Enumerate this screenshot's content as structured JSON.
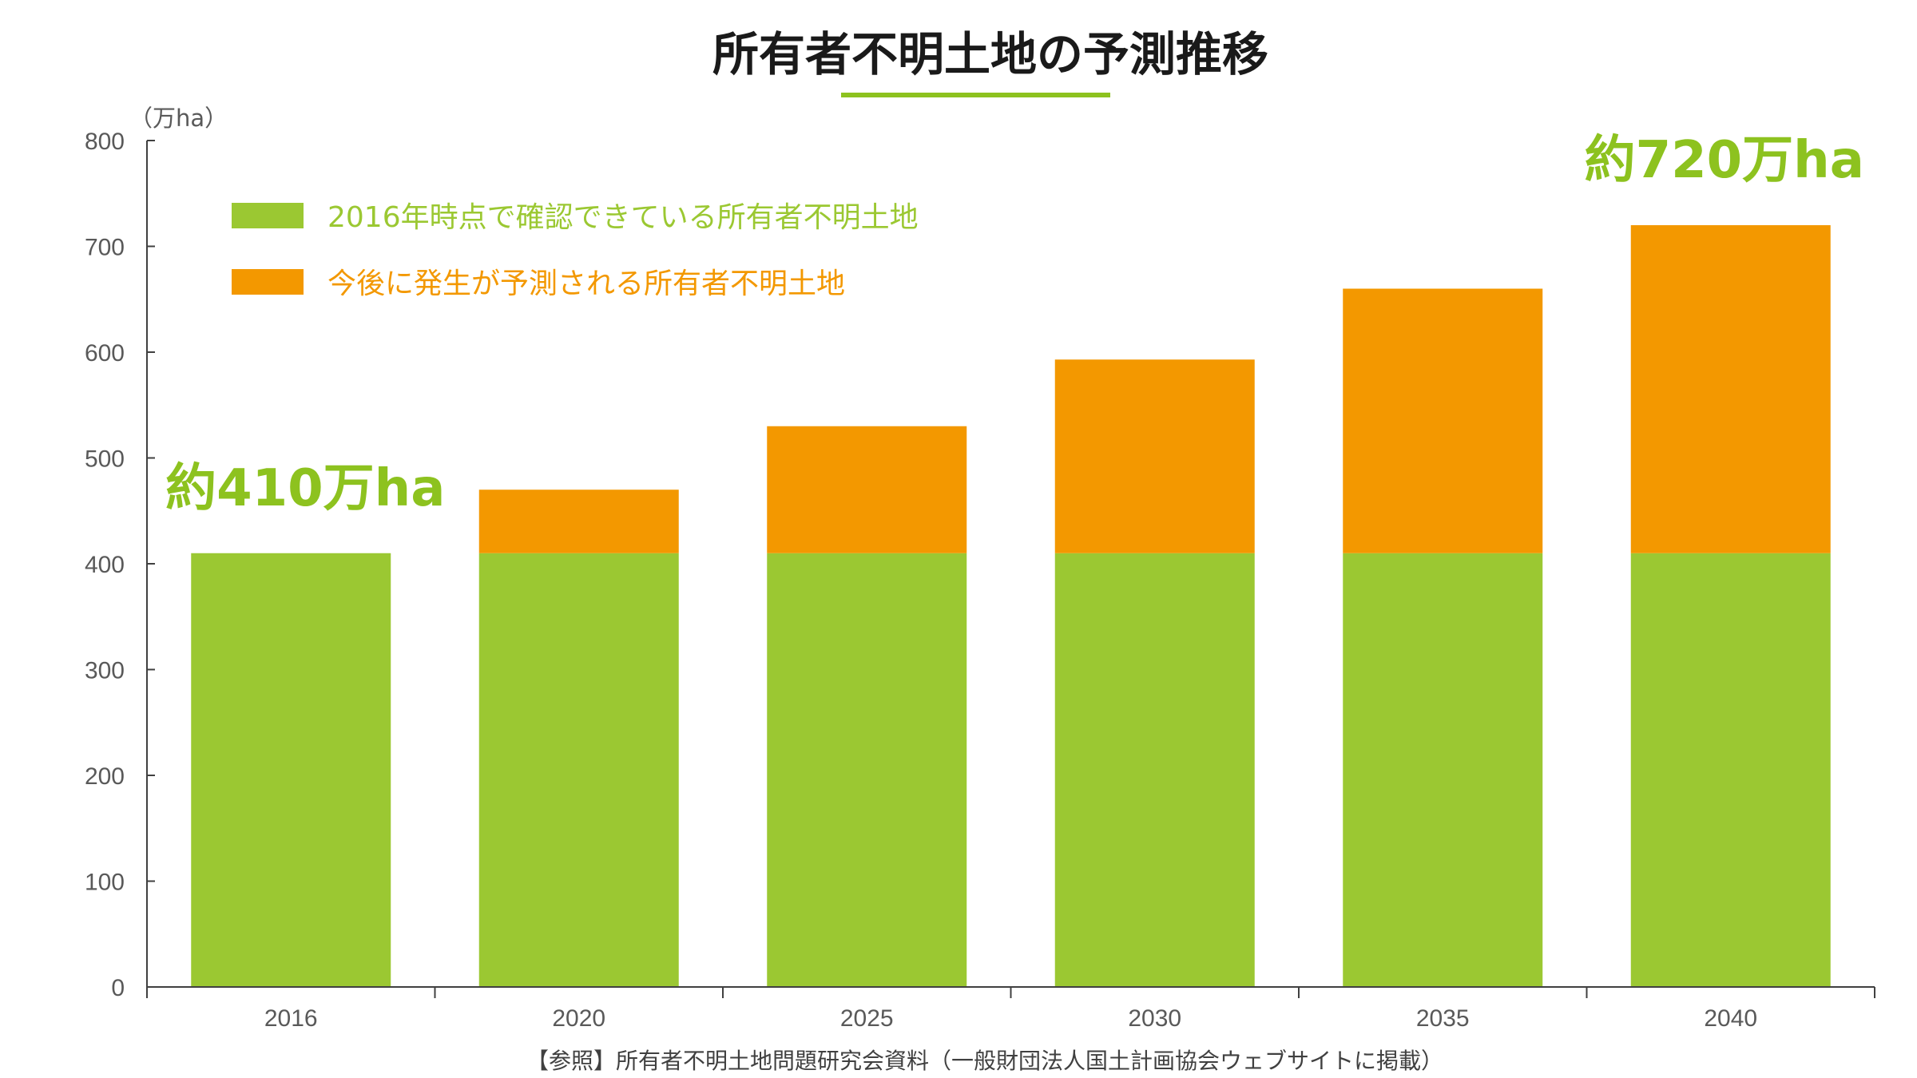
{
  "chart_data": {
    "type": "bar",
    "stacked": true,
    "title": "所有者不明土地の予測推移",
    "ylabel": "（万ha）",
    "ylim": [
      0,
      800
    ],
    "y_ticks": [
      0,
      100,
      200,
      300,
      400,
      500,
      600,
      700,
      800
    ],
    "categories": [
      "2016",
      "2020",
      "2025",
      "2030",
      "2035",
      "2040"
    ],
    "series": [
      {
        "name": "2016年時点で確認できている所有者不明土地",
        "color": "#9BC832",
        "values": [
          410,
          410,
          410,
          410,
          410,
          410
        ]
      },
      {
        "name": "今後に発生が予測される所有者不明土地",
        "color": "#F39800",
        "values": [
          0,
          60,
          120,
          183,
          250,
          310
        ]
      }
    ],
    "totals": [
      410,
      470,
      530,
      593,
      660,
      720
    ],
    "annotations": [
      {
        "text": "約410万ha",
        "category": "2016",
        "value": 410,
        "color": "#8DC21F"
      },
      {
        "text": "約720万ha",
        "category": "2040",
        "value": 720,
        "color": "#8DC21F"
      }
    ],
    "legend_position": "top-left",
    "grid": false,
    "title_underline_color": "#8DC21F",
    "source": "【参照】所有者不明土地問題研究会資料（一般財団法人国土計画協会ウェブサイトに掲載）"
  }
}
